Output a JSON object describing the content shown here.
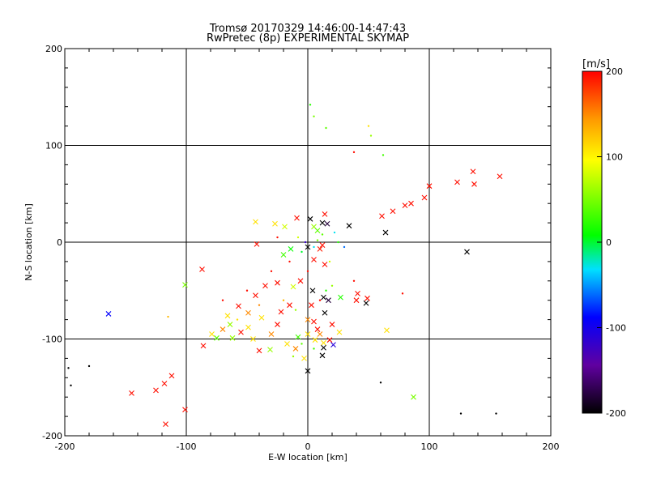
{
  "chart_data": {
    "type": "scatter",
    "title": "Tromsø 20170329 14:46:00-14:47:43",
    "subtitle": "RwPretec (8p) EXPERIMENTAL SKYMAP",
    "xlabel": "E-W location [km]",
    "ylabel": "N-S location [km]",
    "xlim": [
      -200,
      200
    ],
    "ylim": [
      -200,
      200
    ],
    "xticks": [
      "-200",
      "-100",
      "0",
      "100",
      "200"
    ],
    "yticks": [
      "-200",
      "-100",
      "0",
      "100",
      "200"
    ],
    "grid": true,
    "colorbar": {
      "label": "[m/s]",
      "range": [
        -200,
        200
      ],
      "ticks": [
        "-200",
        "-100",
        "0",
        "100",
        "200"
      ],
      "colormap": "black-purple-blue-cyan-green-yellow-orange-red"
    },
    "points": [
      {
        "x": 136,
        "y": 73,
        "v": 195,
        "m": "x"
      },
      {
        "x": 158,
        "y": 68,
        "v": 195,
        "m": "x"
      },
      {
        "x": 123,
        "y": 62,
        "v": 195,
        "m": "x"
      },
      {
        "x": 137,
        "y": 60,
        "v": 195,
        "m": "x"
      },
      {
        "x": 100,
        "y": 58,
        "v": 195,
        "m": "x"
      },
      {
        "x": 96,
        "y": 46,
        "v": 195,
        "m": "x"
      },
      {
        "x": 85,
        "y": 40,
        "v": 195,
        "m": "x"
      },
      {
        "x": 80,
        "y": 38,
        "v": 195,
        "m": "x"
      },
      {
        "x": 70,
        "y": 32,
        "v": 195,
        "m": "x"
      },
      {
        "x": 61,
        "y": 27,
        "v": 195,
        "m": "x"
      },
      {
        "x": 64,
        "y": 10,
        "v": -200,
        "m": "x"
      },
      {
        "x": 131,
        "y": -10,
        "v": -200,
        "m": "x"
      },
      {
        "x": 38,
        "y": 93,
        "v": 195,
        "m": "."
      },
      {
        "x": 52,
        "y": 110,
        "v": 60,
        "m": "."
      },
      {
        "x": 50,
        "y": 120,
        "v": 110,
        "m": "."
      },
      {
        "x": 62,
        "y": 90,
        "v": 30,
        "m": "."
      },
      {
        "x": 15,
        "y": 118,
        "v": 40,
        "m": "."
      },
      {
        "x": 2,
        "y": 142,
        "v": 20,
        "m": "."
      },
      {
        "x": 5,
        "y": 130,
        "v": 50,
        "m": "."
      },
      {
        "x": 2,
        "y": 24,
        "v": -200,
        "m": "x"
      },
      {
        "x": -9,
        "y": 25,
        "v": 195,
        "m": "x"
      },
      {
        "x": 14,
        "y": 29,
        "v": 195,
        "m": "x"
      },
      {
        "x": 12,
        "y": 20,
        "v": -200,
        "m": "x"
      },
      {
        "x": 16,
        "y": 19,
        "v": -180,
        "m": "x"
      },
      {
        "x": -27,
        "y": 19,
        "v": 110,
        "m": "x"
      },
      {
        "x": -43,
        "y": 21,
        "v": 110,
        "m": "x"
      },
      {
        "x": 5,
        "y": 16,
        "v": 60,
        "m": "x"
      },
      {
        "x": 34,
        "y": 17,
        "v": -200,
        "m": "x"
      },
      {
        "x": -19,
        "y": 16,
        "v": 80,
        "m": "x"
      },
      {
        "x": 8,
        "y": 12,
        "v": 40,
        "m": "x"
      },
      {
        "x": 0,
        "y": -5,
        "v": -200,
        "m": "x"
      },
      {
        "x": -42,
        "y": -2,
        "v": 195,
        "m": "x"
      },
      {
        "x": 12,
        "y": -3,
        "v": 195,
        "m": "x"
      },
      {
        "x": -14,
        "y": -7,
        "v": 10,
        "m": "x"
      },
      {
        "x": -20,
        "y": -13,
        "v": 30,
        "m": "x"
      },
      {
        "x": 10,
        "y": -7,
        "v": 190,
        "m": "x"
      },
      {
        "x": 14,
        "y": -23,
        "v": 195,
        "m": "x"
      },
      {
        "x": 5,
        "y": -18,
        "v": 195,
        "m": "x"
      },
      {
        "x": -87,
        "y": -28,
        "v": 195,
        "m": "x"
      },
      {
        "x": -101,
        "y": -44,
        "v": 50,
        "m": "x"
      },
      {
        "x": -12,
        "y": -46,
        "v": 80,
        "m": "x"
      },
      {
        "x": -25,
        "y": -42,
        "v": 195,
        "m": "x"
      },
      {
        "x": -35,
        "y": -45,
        "v": 195,
        "m": "x"
      },
      {
        "x": -43,
        "y": -55,
        "v": 195,
        "m": "x"
      },
      {
        "x": 4,
        "y": -50,
        "v": -200,
        "m": "x"
      },
      {
        "x": 13,
        "y": -57,
        "v": -200,
        "m": "x"
      },
      {
        "x": 17,
        "y": -60,
        "v": -180,
        "m": "x"
      },
      {
        "x": 27,
        "y": -57,
        "v": 20,
        "m": "x"
      },
      {
        "x": 41,
        "y": -53,
        "v": 195,
        "m": "x"
      },
      {
        "x": 40,
        "y": -60,
        "v": 195,
        "m": "x"
      },
      {
        "x": 48,
        "y": -63,
        "v": -200,
        "m": "x"
      },
      {
        "x": 49,
        "y": -58,
        "v": 195,
        "m": "x"
      },
      {
        "x": -164,
        "y": -74,
        "v": -90,
        "m": "x"
      },
      {
        "x": -57,
        "y": -66,
        "v": 195,
        "m": "x"
      },
      {
        "x": -66,
        "y": -76,
        "v": 110,
        "m": "x"
      },
      {
        "x": -49,
        "y": -73,
        "v": 150,
        "m": "x"
      },
      {
        "x": -38,
        "y": -78,
        "v": 110,
        "m": "x"
      },
      {
        "x": -22,
        "y": -72,
        "v": 195,
        "m": "x"
      },
      {
        "x": 14,
        "y": -73,
        "v": -200,
        "m": "x"
      },
      {
        "x": 5,
        "y": -82,
        "v": 195,
        "m": "x"
      },
      {
        "x": -64,
        "y": -85,
        "v": 60,
        "m": "x"
      },
      {
        "x": -49,
        "y": -88,
        "v": 110,
        "m": "x"
      },
      {
        "x": -55,
        "y": -93,
        "v": 195,
        "m": "x"
      },
      {
        "x": -79,
        "y": -95,
        "v": 110,
        "m": "x"
      },
      {
        "x": -75,
        "y": -99,
        "v": 40,
        "m": "x"
      },
      {
        "x": -62,
        "y": -99,
        "v": 60,
        "m": "x"
      },
      {
        "x": -86,
        "y": -107,
        "v": 195,
        "m": "x"
      },
      {
        "x": -40,
        "y": -112,
        "v": 195,
        "m": "x"
      },
      {
        "x": -31,
        "y": -111,
        "v": 60,
        "m": "x"
      },
      {
        "x": -17,
        "y": -105,
        "v": 110,
        "m": "x"
      },
      {
        "x": -8,
        "y": -98,
        "v": 30,
        "m": "x"
      },
      {
        "x": 0,
        "y": -95,
        "v": 110,
        "m": "x"
      },
      {
        "x": 6,
        "y": -101,
        "v": 110,
        "m": "x"
      },
      {
        "x": 13,
        "y": -104,
        "v": 110,
        "m": "x"
      },
      {
        "x": 18,
        "y": -101,
        "v": 195,
        "m": "x"
      },
      {
        "x": 21,
        "y": -106,
        "v": -110,
        "m": "x"
      },
      {
        "x": 13,
        "y": -109,
        "v": -200,
        "m": "x"
      },
      {
        "x": 26,
        "y": -93,
        "v": 110,
        "m": "x"
      },
      {
        "x": 65,
        "y": -91,
        "v": 110,
        "m": "x"
      },
      {
        "x": -3,
        "y": -120,
        "v": 110,
        "m": "x"
      },
      {
        "x": 12,
        "y": -117,
        "v": -200,
        "m": "x"
      },
      {
        "x": 0,
        "y": -133,
        "v": -200,
        "m": "x"
      },
      {
        "x": 87,
        "y": -160,
        "v": 50,
        "m": "x"
      },
      {
        "x": -145,
        "y": -156,
        "v": 195,
        "m": "x"
      },
      {
        "x": -125,
        "y": -153,
        "v": 195,
        "m": "x"
      },
      {
        "x": -118,
        "y": -146,
        "v": 195,
        "m": "x"
      },
      {
        "x": -112,
        "y": -138,
        "v": 195,
        "m": "x"
      },
      {
        "x": -101,
        "y": -173,
        "v": 195,
        "m": "x"
      },
      {
        "x": -117,
        "y": -188,
        "v": 195,
        "m": "x"
      },
      {
        "x": -6,
        "y": -40,
        "v": 195,
        "m": "x"
      },
      {
        "x": 3,
        "y": -65,
        "v": 195,
        "m": "x"
      },
      {
        "x": -30,
        "y": -95,
        "v": 150,
        "m": "x"
      },
      {
        "x": -10,
        "y": -110,
        "v": 150,
        "m": "x"
      },
      {
        "x": 8,
        "y": -90,
        "v": 195,
        "m": "x"
      },
      {
        "x": 20,
        "y": -85,
        "v": 195,
        "m": "x"
      },
      {
        "x": -45,
        "y": -100,
        "v": 110,
        "m": "x"
      },
      {
        "x": -70,
        "y": -90,
        "v": 150,
        "m": "x"
      },
      {
        "x": -15,
        "y": -65,
        "v": 195,
        "m": "x"
      },
      {
        "x": 0,
        "y": -80,
        "v": 150,
        "m": "x"
      },
      {
        "x": 10,
        "y": -95,
        "v": 150,
        "m": "x"
      },
      {
        "x": -25,
        "y": -85,
        "v": 195,
        "m": "x"
      },
      {
        "x": -115,
        "y": -77,
        "v": 130,
        "m": "."
      },
      {
        "x": -180,
        "y": -128,
        "v": -200,
        "m": "."
      },
      {
        "x": -197,
        "y": -130,
        "v": -200,
        "m": "."
      },
      {
        "x": -195,
        "y": -148,
        "v": -200,
        "m": "."
      },
      {
        "x": 60,
        "y": -145,
        "v": -200,
        "m": "."
      },
      {
        "x": 126,
        "y": -177,
        "v": -200,
        "m": "."
      },
      {
        "x": 155,
        "y": -177,
        "v": -200,
        "m": "."
      },
      {
        "x": 78,
        "y": -53,
        "v": 195,
        "m": "."
      },
      {
        "x": 20,
        "y": -45,
        "v": 60,
        "m": "."
      },
      {
        "x": 15,
        "y": -50,
        "v": 20,
        "m": "."
      },
      {
        "x": -5,
        "y": -10,
        "v": 0,
        "m": "."
      },
      {
        "x": 5,
        "y": -5,
        "v": -30,
        "m": "."
      },
      {
        "x": 8,
        "y": 2,
        "v": 50,
        "m": "."
      },
      {
        "x": -8,
        "y": 5,
        "v": 80,
        "m": "."
      },
      {
        "x": 25,
        "y": 0,
        "v": 20,
        "m": "."
      },
      {
        "x": 30,
        "y": -5,
        "v": -60,
        "m": "."
      },
      {
        "x": -15,
        "y": -20,
        "v": 195,
        "m": "."
      },
      {
        "x": -30,
        "y": -30,
        "v": 195,
        "m": "."
      },
      {
        "x": -50,
        "y": -50,
        "v": 195,
        "m": "."
      },
      {
        "x": -70,
        "y": -60,
        "v": 195,
        "m": "."
      },
      {
        "x": -20,
        "y": -60,
        "v": 130,
        "m": "."
      },
      {
        "x": -10,
        "y": -70,
        "v": 60,
        "m": "."
      },
      {
        "x": 10,
        "y": -60,
        "v": 195,
        "m": "."
      },
      {
        "x": 5,
        "y": -110,
        "v": 30,
        "m": "."
      },
      {
        "x": -5,
        "y": -105,
        "v": 40,
        "m": "."
      },
      {
        "x": -12,
        "y": -118,
        "v": 60,
        "m": "."
      },
      {
        "x": -40,
        "y": -65,
        "v": 150,
        "m": "."
      },
      {
        "x": -58,
        "y": -80,
        "v": 110,
        "m": "."
      },
      {
        "x": 18,
        "y": -20,
        "v": 80,
        "m": "."
      },
      {
        "x": -25,
        "y": 5,
        "v": 195,
        "m": "."
      },
      {
        "x": 22,
        "y": 10,
        "v": -30,
        "m": "."
      },
      {
        "x": 12,
        "y": 8,
        "v": 40,
        "m": "."
      },
      {
        "x": -2,
        "y": 0,
        "v": -120,
        "m": "."
      },
      {
        "x": 0,
        "y": -30,
        "v": 195,
        "m": "."
      },
      {
        "x": 38,
        "y": -40,
        "v": 195,
        "m": "."
      }
    ]
  }
}
